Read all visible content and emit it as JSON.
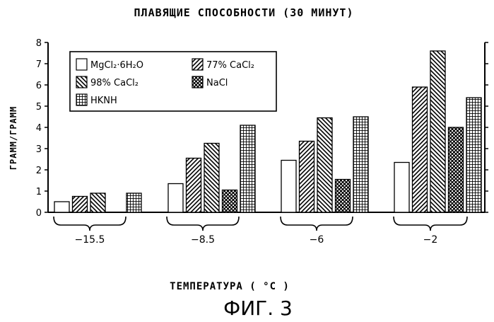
{
  "figure_caption": "ФИГ. 3",
  "chart_data": {
    "type": "bar",
    "title": "ПЛАВЯЩИЕ СПОСОБНОСТИ (30 МИНУТ)",
    "ylabel": "ГРАММ/ГРАММ",
    "xlabel": "ТЕМПЕРАТУРА ( °C )",
    "ylim": [
      0,
      8
    ],
    "yticks": [
      "0",
      "1",
      "2",
      "3",
      "4",
      "5",
      "6",
      "7",
      "8"
    ],
    "categories": [
      "-15.5",
      "-8.5",
      "-6",
      "-2"
    ],
    "series": [
      {
        "name": "MgCl₂·6H₂O",
        "pattern": "blank",
        "values": [
          0.5,
          1.35,
          2.45,
          2.35
        ]
      },
      {
        "name": "77% CaCl₂",
        "pattern": "hatch-left",
        "values": [
          0.75,
          2.55,
          3.35,
          5.9
        ]
      },
      {
        "name": "98% CaCl₂",
        "pattern": "hatch-right",
        "values": [
          0.9,
          3.25,
          4.45,
          7.6
        ]
      },
      {
        "name": "NaCl",
        "pattern": "diamond",
        "values": [
          null,
          1.05,
          1.55,
          4.0
        ]
      },
      {
        "name": "HKNH",
        "pattern": "grid",
        "values": [
          0.9,
          4.1,
          4.5,
          5.4
        ]
      }
    ],
    "legend": "top-left",
    "grid": false
  }
}
